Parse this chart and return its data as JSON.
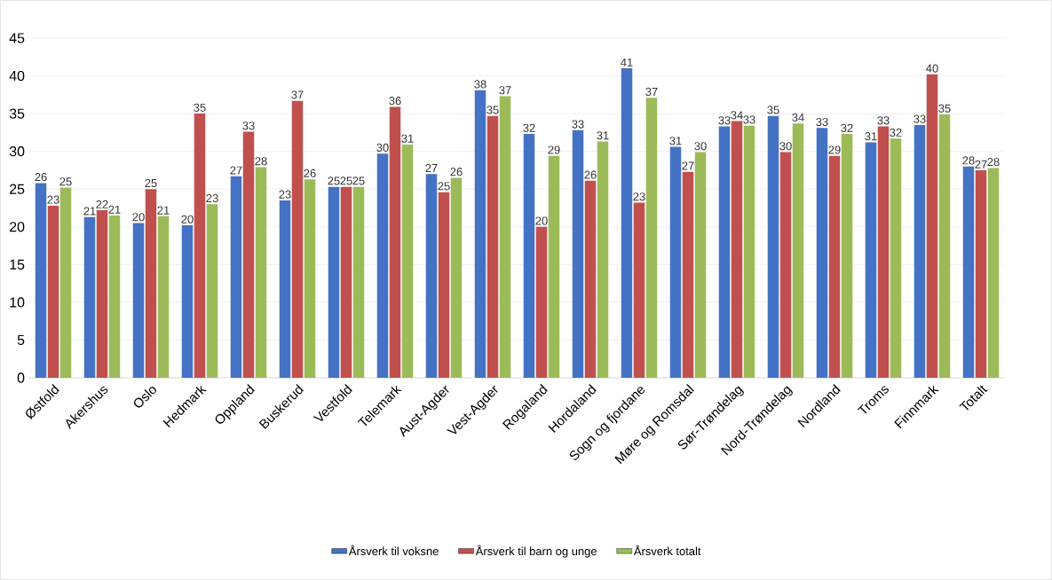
{
  "chart_data": {
    "type": "bar",
    "categories": [
      "Østfold",
      "Akershus",
      "Oslo",
      "Hedmark",
      "Oppland",
      "Buskerud",
      "Vestfold",
      "Telemark",
      "Aust-Agder",
      "Vest-Agder",
      "Rogaland",
      "Hordaland",
      "Sogn og fjordane",
      "Møre og Romsdal",
      "Sør-Trøndelag",
      "Nord-Trøndelag",
      "Nordland",
      "Troms",
      "Finnmark",
      "Totalt"
    ],
    "series": [
      {
        "name": "Årsverk til voksne",
        "color": "#4472c4",
        "values": [
          25.8,
          21.3,
          20.5,
          20.2,
          26.7,
          23.5,
          25.3,
          29.7,
          27.0,
          38.1,
          32.3,
          32.8,
          41.0,
          30.6,
          33.3,
          34.7,
          33.1,
          31.2,
          33.5,
          28.0
        ],
        "value_labels": [
          "26",
          "21",
          "20",
          "20",
          "27",
          "23",
          "25",
          "30",
          "27",
          "38",
          "32",
          "33",
          "41",
          "31",
          "33",
          "35",
          "33",
          "31",
          "33",
          "28"
        ]
      },
      {
        "name": "Årsverk til barn og unge",
        "color": "#c0504d",
        "values": [
          22.8,
          22.2,
          25.0,
          35.0,
          32.6,
          36.7,
          25.3,
          35.9,
          24.6,
          34.7,
          20.0,
          26.1,
          23.2,
          27.3,
          34.0,
          29.9,
          29.4,
          33.3,
          40.2,
          27.5
        ],
        "value_labels": [
          "23",
          "22",
          "25",
          "35",
          "33",
          "37",
          "25",
          "36",
          "25",
          "35",
          "20",
          "26",
          "23",
          "27",
          "34",
          "30",
          "29",
          "33",
          "40",
          "27"
        ]
      },
      {
        "name": "Årsverk totalt",
        "color": "#9bbb59",
        "values": [
          25.2,
          21.5,
          21.4,
          23.0,
          27.9,
          26.3,
          25.3,
          30.9,
          26.5,
          37.3,
          29.4,
          31.3,
          37.1,
          29.9,
          33.4,
          33.7,
          32.3,
          31.7,
          34.9,
          27.8
        ],
        "value_labels": [
          "25",
          "21",
          "21",
          "23",
          "28",
          "26",
          "25",
          "31",
          "26",
          "37",
          "29",
          "31",
          "37",
          "30",
          "33",
          "34",
          "32",
          "32",
          "35",
          "28"
        ]
      }
    ],
    "ylim": [
      0,
      45
    ],
    "yticks": [
      0,
      5,
      10,
      15,
      20,
      25,
      30,
      35,
      40,
      45
    ],
    "grid": "y",
    "legend": "bottom"
  }
}
